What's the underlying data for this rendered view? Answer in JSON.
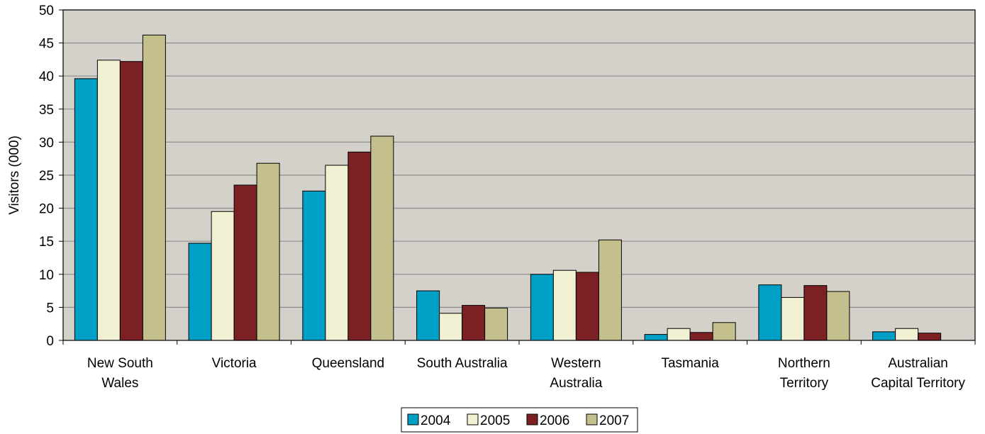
{
  "chart_data": {
    "type": "bar",
    "title": "",
    "xlabel": "",
    "ylabel": "Visitors (000)",
    "ylim": [
      0,
      50
    ],
    "yticks": [
      0,
      5,
      10,
      15,
      20,
      25,
      30,
      35,
      40,
      45,
      50
    ],
    "grid": true,
    "legend_position": "bottom",
    "plot_background": "#D4D0CA",
    "categories": [
      [
        "New South",
        "Wales"
      ],
      [
        "Victoria"
      ],
      [
        "Queensland"
      ],
      [
        "South Australia"
      ],
      [
        "Western",
        "Australia"
      ],
      [
        "Tasmania"
      ],
      [
        "Northern",
        "Territory"
      ],
      [
        "Australian",
        "Capital Territory"
      ]
    ],
    "series": [
      {
        "name": "2004",
        "color": "#00A0C6",
        "values": [
          39.6,
          14.7,
          22.6,
          7.5,
          10.0,
          0.9,
          8.4,
          1.3
        ]
      },
      {
        "name": "2005",
        "color": "#F2F0D2",
        "values": [
          42.4,
          19.5,
          26.5,
          4.1,
          10.6,
          1.8,
          6.5,
          1.8
        ]
      },
      {
        "name": "2006",
        "color": "#7B2123",
        "values": [
          42.2,
          23.5,
          28.5,
          5.3,
          10.3,
          1.2,
          8.3,
          1.1
        ]
      },
      {
        "name": "2007",
        "color": "#C4C08E",
        "values": [
          46.2,
          26.8,
          30.9,
          4.9,
          15.2,
          2.7,
          7.4,
          0.0
        ]
      }
    ]
  }
}
